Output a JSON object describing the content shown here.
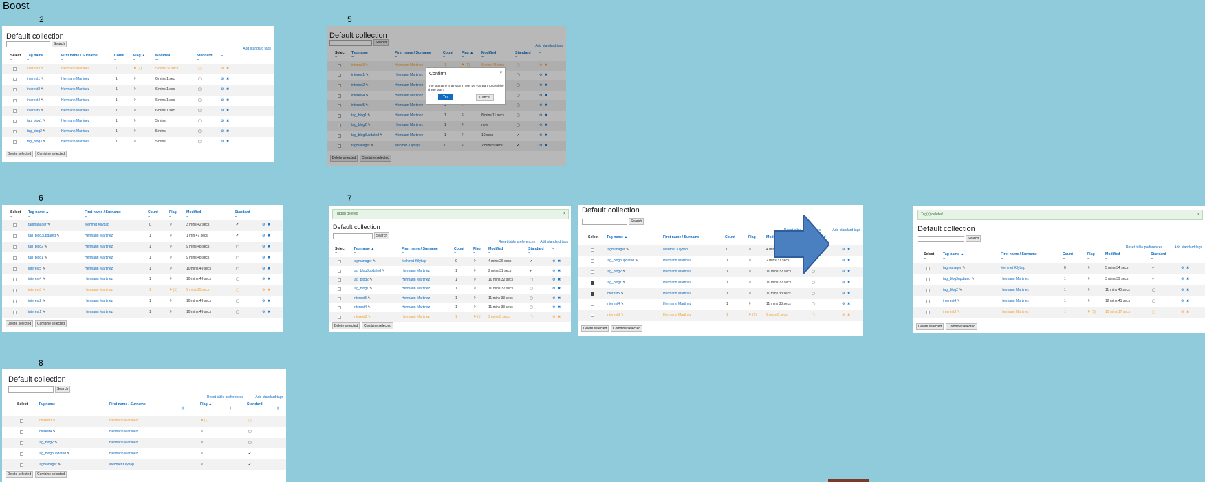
{
  "title": "Boost",
  "common": {
    "collection_title": "Default collection",
    "search_label": "Search",
    "delete_selected": "Delete selected",
    "combine_selected": "Combine selected",
    "add_standard_tags": "Add standard tags",
    "reset_prefs": "Reset table preferences",
    "tags_deleted": "Tag(s) deleted"
  },
  "headers": {
    "select": "Select",
    "tag_name": "Tag name",
    "tag_name_sorted": "Tag name ▲",
    "first_name": "First name / Surname",
    "count": "Count",
    "flag": "Flag",
    "flag_sorted": "Flag ▲",
    "modified": "Modified",
    "standard": "Standard",
    "dash": "−"
  },
  "modal": {
    "title": "Confirm",
    "body": "The tag name is already in use. Do you want to combine these tags?",
    "yes": "Yes",
    "cancel": "Cancel"
  },
  "labels": {
    "n2": "2",
    "n5": "5",
    "n6": "6",
    "n7": "7",
    "n8": "8"
  },
  "p2": {
    "rows": [
      {
        "tag": "interest3",
        "name": "Hermann Martinez",
        "count": "1",
        "flag": "⚑ (1)",
        "mod": "5 mins 37 secs",
        "std": "▢"
      },
      {
        "tag": "interest1",
        "name": "Hermann Martinez",
        "count": "1",
        "flag": "⚐",
        "mod": "6 mins 1 sec",
        "std": "▢"
      },
      {
        "tag": "interest2",
        "name": "Hermann Martinez",
        "count": "1",
        "flag": "⚐",
        "mod": "6 mins 1 sec",
        "std": "▢"
      },
      {
        "tag": "interest4",
        "name": "Hermann Martinez",
        "count": "1",
        "flag": "⚐",
        "mod": "6 mins 1 sec",
        "std": "▢"
      },
      {
        "tag": "interest5",
        "name": "Hermann Martinez",
        "count": "1",
        "flag": "⚐",
        "mod": "6 mins 1 sec",
        "std": "▢"
      },
      {
        "tag": "tag_blog1",
        "name": "Hermann Martinez",
        "count": "1",
        "flag": "⚐",
        "mod": "5 mins",
        "std": "▢"
      },
      {
        "tag": "tag_blog2",
        "name": "Hermann Martinez",
        "count": "1",
        "flag": "⚐",
        "mod": "5 mins",
        "std": "▢"
      },
      {
        "tag": "tag_blog3",
        "name": "Hermann Martinez",
        "count": "1",
        "flag": "⚐",
        "mod": "5 mins",
        "std": "▢"
      }
    ]
  },
  "p5": {
    "rows": [
      {
        "tag": "interest3",
        "name": "Hermann Martinez",
        "count": "1",
        "flag": "⚑ (1)",
        "mod": "6 mins 48 secs",
        "std": "▢"
      },
      {
        "tag": "interest1",
        "name": "Hermann Martinez",
        "count": "1",
        "flag": "⚐",
        "mod": "",
        "std": "▢"
      },
      {
        "tag": "interest2",
        "name": "Hermann Martinez",
        "count": "1",
        "flag": "⚐",
        "mod": "",
        "std": "▢"
      },
      {
        "tag": "interest4",
        "name": "Hermann Martinez",
        "count": "1",
        "flag": "⚐",
        "mod": "",
        "std": "▢"
      },
      {
        "tag": "interest5",
        "name": "Hermann Martinez",
        "count": "1",
        "flag": "⚐",
        "mod": "",
        "std": "▢"
      },
      {
        "tag": "tag_blog1",
        "name": "Hermann Martinez",
        "count": "1",
        "flag": "⚐",
        "mod": "8 mins 11 secs",
        "std": "▢"
      },
      {
        "tag": "tag_blog2",
        "name": "Hermann Martinez",
        "count": "1",
        "flag": "⚐",
        "mod": "now",
        "std": "▢"
      },
      {
        "tag": "tag_blog3updated",
        "name": "Hermann Martinez",
        "count": "1",
        "flag": "⚐",
        "mod": "10 secs",
        "std": "✔"
      },
      {
        "tag": "tagmanager",
        "name": "Mehmet Kilybap",
        "count": "0",
        "flag": "⚐",
        "mod": "2 mins 5 secs",
        "std": "✔"
      }
    ]
  },
  "p6": {
    "rows": [
      {
        "tag": "tagmanager",
        "name": "Mehmet Kilybap",
        "count": "0",
        "flag": "⚐",
        "mod": "3 mins 42 secs",
        "std": "✔"
      },
      {
        "tag": "tag_blog3updated",
        "name": "Hermann Martinez",
        "count": "1",
        "flag": "⚐",
        "mod": "1 min 47 secs",
        "std": "✔"
      },
      {
        "tag": "tag_blog2",
        "name": "Hermann Martinez",
        "count": "1",
        "flag": "⚐",
        "mod": "9 mins 48 secs",
        "std": "▢"
      },
      {
        "tag": "tag_blog1",
        "name": "Hermann Martinez",
        "count": "1",
        "flag": "⚐",
        "mod": "9 mins 48 secs",
        "std": "▢"
      },
      {
        "tag": "interest5",
        "name": "Hermann Martinez",
        "count": "1",
        "flag": "⚐",
        "mod": "10 mins 49 secs",
        "std": "▢"
      },
      {
        "tag": "interest4",
        "name": "Hermann Martinez",
        "count": "1",
        "flag": "⚐",
        "mod": "10 mins 49 secs",
        "std": "▢"
      },
      {
        "tag": "interest3",
        "name": "Hermann Martinez",
        "count": "1",
        "flag": "⚑ (1)",
        "mod": "9 mins 25 secs",
        "std": "▢"
      },
      {
        "tag": "interest2",
        "name": "Hermann Martinez",
        "count": "1",
        "flag": "⚐",
        "mod": "10 mins 49 secs",
        "std": "▢"
      },
      {
        "tag": "interest1",
        "name": "Hermann Martinez",
        "count": "1",
        "flag": "⚐",
        "mod": "10 mins 49 secs",
        "std": "▢"
      }
    ]
  },
  "p7": {
    "rows": [
      {
        "tag": "tagmanager",
        "name": "Mehmet Kilybap",
        "count": "0",
        "flag": "⚐",
        "mod": "4 mins 26 secs",
        "std": "✔"
      },
      {
        "tag": "tag_blog3updated",
        "name": "Hermann Martinez",
        "count": "1",
        "flag": "⚐",
        "mod": "2 mins 31 secs",
        "std": "✔"
      },
      {
        "tag": "tag_blog2",
        "name": "Hermann Martinez",
        "count": "1",
        "flag": "⚐",
        "mod": "10 mins 32 secs",
        "std": "▢"
      },
      {
        "tag": "tag_blog1",
        "name": "Hermann Martinez",
        "count": "1",
        "flag": "⚐",
        "mod": "10 mins 32 secs",
        "std": "▢"
      },
      {
        "tag": "interest5",
        "name": "Hermann Martinez",
        "count": "1",
        "flag": "⚐",
        "mod": "11 mins 33 secs",
        "std": "▢"
      },
      {
        "tag": "interest4",
        "name": "Hermann Martinez",
        "count": "1",
        "flag": "⚐",
        "mod": "11 mins 33 secs",
        "std": "▢"
      },
      {
        "tag": "interest3",
        "name": "Hermann Martinez",
        "count": "1",
        "flag": "⚑ (1)",
        "mod": "9 mins 8 secs",
        "std": "▢"
      }
    ]
  },
  "p9": {
    "rows": [
      {
        "tag": "tagmanager",
        "name": "Mehmet Kilybap",
        "count": "0",
        "flag": "⚐",
        "mod": "4 mins 26 secs",
        "std": "✔"
      },
      {
        "tag": "tag_blog3updated",
        "name": "Hermann Martinez",
        "count": "1",
        "flag": "⚐",
        "mod": "2 mins 31 secs",
        "std": "✔"
      },
      {
        "tag": "tag_blog2",
        "name": "Hermann Martinez",
        "count": "1",
        "flag": "⚐",
        "mod": "10 mins 32 secs",
        "std": "▢"
      },
      {
        "tag": "tag_blog1",
        "name": "Hermann Martinez",
        "count": "1",
        "flag": "⚐",
        "mod": "10 mins 32 secs",
        "std": "▢"
      },
      {
        "tag": "interest5",
        "name": "Hermann Martinez",
        "count": "1",
        "flag": "⚐",
        "mod": "11 mins 33 secs",
        "std": "▢"
      },
      {
        "tag": "interest4",
        "name": "Hermann Martinez",
        "count": "1",
        "flag": "⚐",
        "mod": "11 mins 33 secs",
        "std": "▢"
      },
      {
        "tag": "interest3",
        "name": "Hermann Martinez",
        "count": "1",
        "flag": "⚑ (1)",
        "mod": "9 mins 8 secs",
        "std": "▢"
      }
    ]
  },
  "p10": {
    "rows": [
      {
        "tag": "tagmanager",
        "name": "Mehmet Kilybap",
        "count": "0",
        "flag": "⚐",
        "mod": "5 mins 34 secs",
        "std": "✔"
      },
      {
        "tag": "tag_blog3updated",
        "name": "Hermann Martinez",
        "count": "1",
        "flag": "⚐",
        "mod": "3 mins 39 secs",
        "std": "✔"
      },
      {
        "tag": "tag_blog2",
        "name": "Hermann Martinez",
        "count": "1",
        "flag": "⚐",
        "mod": "11 mins 40 secs",
        "std": "▢"
      },
      {
        "tag": "interest4",
        "name": "Hermann Martinez",
        "count": "1",
        "flag": "⚐",
        "mod": "12 mins 41 secs",
        "std": "▢"
      },
      {
        "tag": "interest3",
        "name": "Hermann Martinez",
        "count": "1",
        "flag": "⚑ (1)",
        "mod": "10 mins 17 secs",
        "std": "▢"
      }
    ]
  },
  "p8": {
    "rows": [
      {
        "tag": "interest3",
        "name": "Hermann Martinez",
        "flag": "⚑ (1)",
        "std": "▢"
      },
      {
        "tag": "interest4",
        "name": "Hermann Martinez",
        "flag": "⚐",
        "std": "▢"
      },
      {
        "tag": "tag_blog2",
        "name": "Hermann Martinez",
        "flag": "⚐",
        "std": "▢"
      },
      {
        "tag": "tag_blog3updated",
        "name": "Hermann Martinez",
        "flag": "⚐",
        "std": "✔"
      },
      {
        "tag": "tagmanager",
        "name": "Mehmet Kilybap",
        "flag": "⚐",
        "std": "✔"
      }
    ]
  }
}
